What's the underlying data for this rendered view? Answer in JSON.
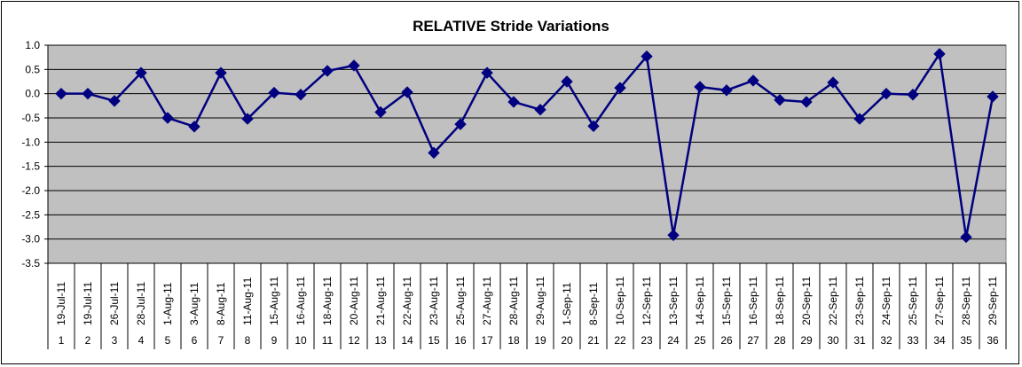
{
  "chart_data": {
    "type": "line",
    "title": "RELATIVE Stride Variations",
    "xlabel": "",
    "ylabel": "",
    "ylim": [
      -3.5,
      1.0
    ],
    "yticks": [
      "1.0",
      "0.5",
      "0.0",
      "-0.5",
      "-1.0",
      "-1.5",
      "-2.0",
      "-2.5",
      "-3.0",
      "-3.5"
    ],
    "grid": true,
    "legend": "none",
    "plot_background": "#c0c0c0",
    "series_color": "#000080",
    "dates": [
      "19-Jul-11",
      "19-Jul-11",
      "26-Jul-11",
      "28-Jul-11",
      "1-Aug-11",
      "3-Aug-11",
      "8-Aug-11",
      "11-Aug-11",
      "15-Aug-11",
      "16-Aug-11",
      "18-Aug-11",
      "20-Aug-11",
      "21-Aug-11",
      "22-Aug-11",
      "23-Aug-11",
      "25-Aug-11",
      "27-Aug-11",
      "28-Aug-11",
      "29-Aug-11",
      "1-Sep-11",
      "8-Sep-11",
      "10-Sep-11",
      "12-Sep-11",
      "13-Sep-11",
      "14-Sep-11",
      "15-Sep-11",
      "16-Sep-11",
      "18-Sep-11",
      "20-Sep-11",
      "22-Sep-11",
      "23-Sep-11",
      "24-Sep-11",
      "25-Sep-11",
      "27-Sep-11",
      "28-Sep-11",
      "29-Sep-11"
    ],
    "index": [
      "1",
      "2",
      "3",
      "4",
      "5",
      "6",
      "7",
      "8",
      "9",
      "10",
      "11",
      "12",
      "13",
      "14",
      "15",
      "16",
      "17",
      "18",
      "19",
      "20",
      "21",
      "22",
      "23",
      "24",
      "25",
      "26",
      "27",
      "28",
      "29",
      "30",
      "31",
      "32",
      "33",
      "34",
      "35",
      "36"
    ],
    "series": [
      {
        "values": [
          0.0,
          0.0,
          -0.15,
          0.43,
          -0.5,
          -0.68,
          0.43,
          -0.52,
          0.02,
          -0.02,
          0.47,
          0.58,
          -0.38,
          0.03,
          -1.22,
          -0.63,
          0.43,
          -0.17,
          -0.33,
          0.25,
          -0.67,
          0.12,
          0.77,
          -2.92,
          0.14,
          0.07,
          0.27,
          -0.13,
          -0.17,
          0.23,
          -0.52,
          0.0,
          -0.02,
          0.82,
          -2.96,
          -0.06
        ]
      }
    ]
  }
}
